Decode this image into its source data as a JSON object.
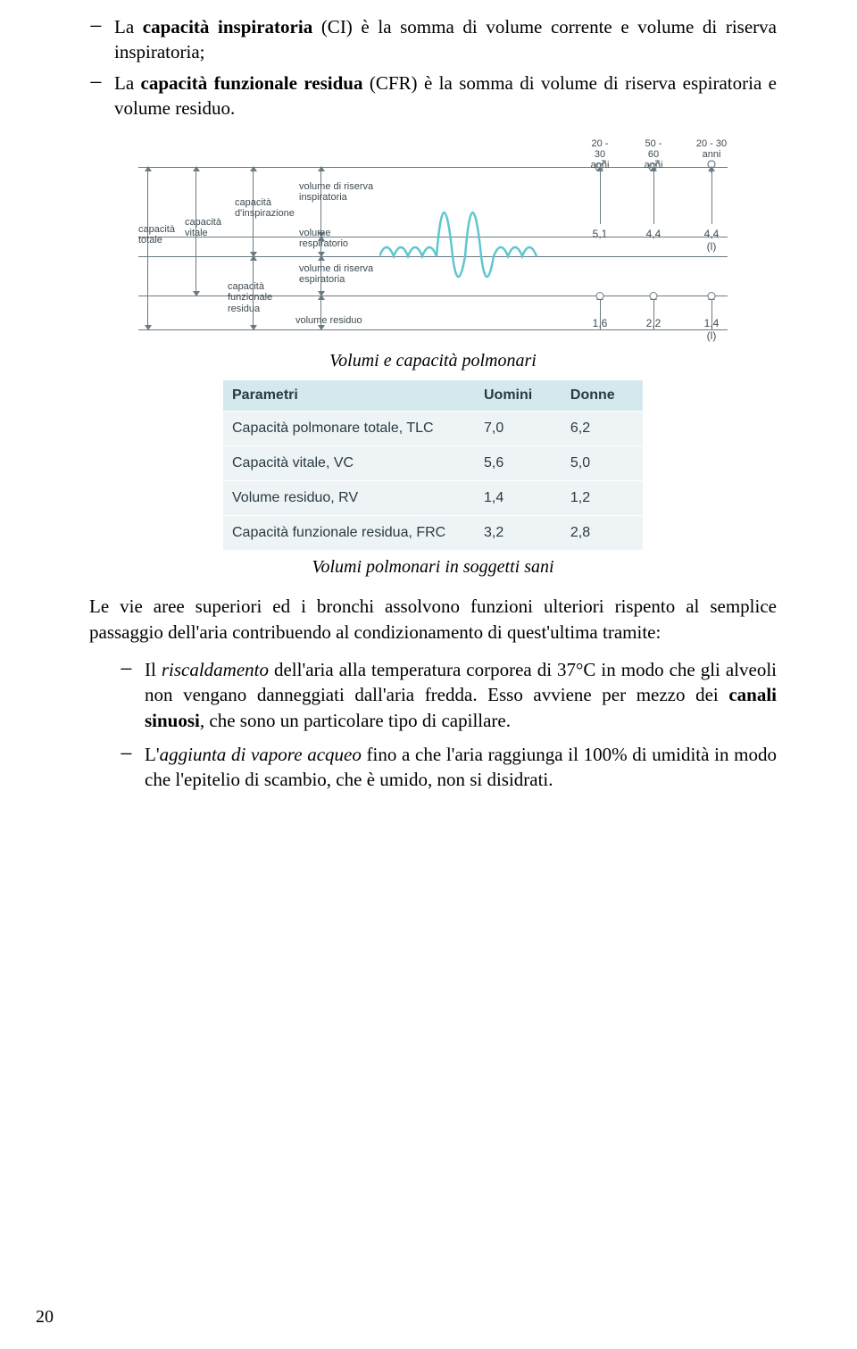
{
  "bullets_top": [
    {
      "pre": "La ",
      "b1": "capacità inspiratoria",
      "mid1": " (CI) è la somma di volume corrente e volume di riserva inspiratoria;"
    },
    {
      "pre": "La ",
      "b1": "capacità funzionale residua",
      "mid1": " (CFR) è la somma di volume di riserva espiratoria e volume residuo."
    }
  ],
  "diagram": {
    "labels": {
      "cap_totale": "capacità\ntotale",
      "cap_vitale": "capacità\nvitale",
      "cap_insp": "capacità\nd'inspirazione",
      "cap_funz": "capacità\nfunzionale\nresidua",
      "vol_ris_insp": "volume di riserva\ninspiratoria",
      "vol_resp": "volume\nrespiratorio",
      "vol_ris_esp": "volume di riserva\nespiratoria",
      "vol_residuo": "volume residuo"
    },
    "age_cols": [
      {
        "top": "20 - 30",
        "sub": "anni",
        "v1": "5,1",
        "v2": "1,6",
        "symbol": "male"
      },
      {
        "top": "50 - 60",
        "sub": "anni",
        "v1": "4,4",
        "v2": "2,2",
        "symbol": "male"
      },
      {
        "top": "20 - 30",
        "sub": "anni",
        "v1": "4,4 (l)",
        "v2": "1,4 (l)",
        "symbol": "female"
      }
    ],
    "line_color": "#5fc6cf",
    "axis_color": "#6b7a82"
  },
  "caption1": "Volumi e capacità polmonari",
  "table": {
    "headers": [
      "Parametri",
      "Uomini",
      "Donne"
    ],
    "rows": [
      [
        "Capacità polmonare totale, TLC",
        "7,0",
        "6,2"
      ],
      [
        "Capacità vitale, VC",
        "5,6",
        "5,0"
      ],
      [
        "Volume residuo, RV",
        "1,4",
        "1,2"
      ],
      [
        "Capacità funzionale residua, FRC",
        "3,2",
        "2,8"
      ]
    ],
    "header_bg": "#d5e8ee",
    "row_bg": "#eef3f5"
  },
  "caption2": "Volumi polmonari in soggetti sani",
  "para1": "Le vie aree superiori ed i bronchi assolvono funzioni ulteriori rispento al semplice passaggio dell'aria contribuendo al condizionamento di quest'ultima tramite:",
  "bullets_bottom": [
    {
      "p1": "Il ",
      "i1": "riscaldamento",
      "p2": " dell'aria alla temperatura corporea di 37°C in modo che gli alveoli non vengano danneggiati dall'aria fredda. Esso avviene per mezzo dei ",
      "b1": "canali sinuosi",
      "p3": ", che sono un particolare tipo di capillare."
    },
    {
      "p1": "L'",
      "i1": "aggiunta di vapore acqueo",
      "p2": " fino a che l'aria raggiunga il 100% di umidità in modo che l'epitelio di scambio, che è umido, non si disidrati.",
      "b1": "",
      "p3": ""
    }
  ],
  "page_number": "20"
}
